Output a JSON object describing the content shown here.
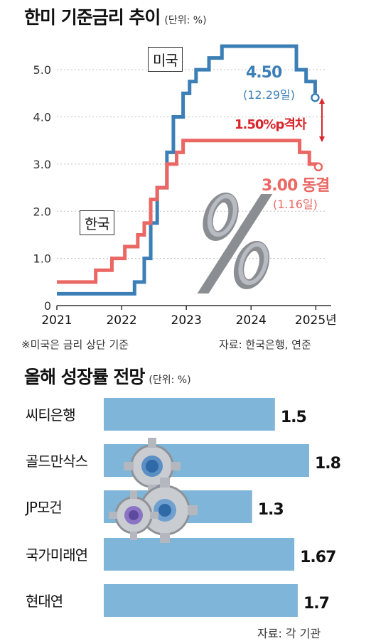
{
  "top": {
    "title": "한미 기준금리 추이",
    "unit": "(단위: %)",
    "note": "※미국은 금리 상단 기준",
    "source": "자료: 한국은행, 연준",
    "us_tag": "미국",
    "kr_tag": "한국",
    "us_last_value": "4.50",
    "us_last_date": "(12.29일)",
    "gap_label": "1.50%p격차",
    "kr_last_value": "3.00 동결",
    "kr_last_date": "(1.16일)",
    "colors": {
      "us": "#3b7fb6",
      "kr": "#ea6763",
      "gap": "#d9262c",
      "axis": "#333333"
    }
  },
  "bottom": {
    "title": "올해 성장률 전망",
    "unit": "(단위: %)",
    "source": "자료: 각 기관",
    "bar_color": "#7fb5d8"
  },
  "chart_data": [
    {
      "type": "line",
      "title": "한미 기준금리 추이",
      "ylim": [
        0,
        5.5
      ],
      "yticks": [
        "0",
        "1.0",
        "2.0",
        "3.0",
        "4.0",
        "5.0"
      ],
      "xticks": [
        "2021",
        "2022",
        "2023",
        "2024",
        "2025년"
      ],
      "xlim": [
        2021,
        2025.15
      ],
      "step": true,
      "series": [
        {
          "name": "미국",
          "color": "#3b7fb6",
          "points": [
            [
              2021.0,
              0.25
            ],
            [
              2022.2,
              0.5
            ],
            [
              2022.35,
              1.0
            ],
            [
              2022.45,
              1.75
            ],
            [
              2022.55,
              2.5
            ],
            [
              2022.7,
              3.25
            ],
            [
              2022.8,
              4.0
            ],
            [
              2022.95,
              4.5
            ],
            [
              2023.05,
              4.75
            ],
            [
              2023.15,
              5.0
            ],
            [
              2023.35,
              5.25
            ],
            [
              2023.55,
              5.5
            ],
            [
              2024.7,
              5.0
            ],
            [
              2024.85,
              4.75
            ],
            [
              2024.99,
              4.5
            ]
          ]
        },
        {
          "name": "한국",
          "color": "#ea6763",
          "points": [
            [
              2021.0,
              0.5
            ],
            [
              2021.6,
              0.75
            ],
            [
              2021.85,
              1.0
            ],
            [
              2022.05,
              1.25
            ],
            [
              2022.25,
              1.5
            ],
            [
              2022.35,
              1.75
            ],
            [
              2022.45,
              2.25
            ],
            [
              2022.55,
              2.5
            ],
            [
              2022.7,
              3.0
            ],
            [
              2022.85,
              3.25
            ],
            [
              2022.95,
              3.5
            ],
            [
              2024.75,
              3.25
            ],
            [
              2024.9,
              3.0
            ],
            [
              2025.04,
              3.0
            ]
          ]
        }
      ]
    },
    {
      "type": "bar",
      "title": "올해 성장률 전망",
      "orientation": "horizontal",
      "xlim": [
        0,
        2.0
      ],
      "categories": [
        "씨티은행",
        "골드만삭스",
        "JP모건",
        "국가미래연",
        "현대연"
      ],
      "values": [
        1.5,
        1.8,
        1.3,
        1.67,
        1.7
      ],
      "value_labels": [
        "1.5",
        "1.8",
        "1.3",
        "1.67",
        "1.7"
      ]
    }
  ]
}
